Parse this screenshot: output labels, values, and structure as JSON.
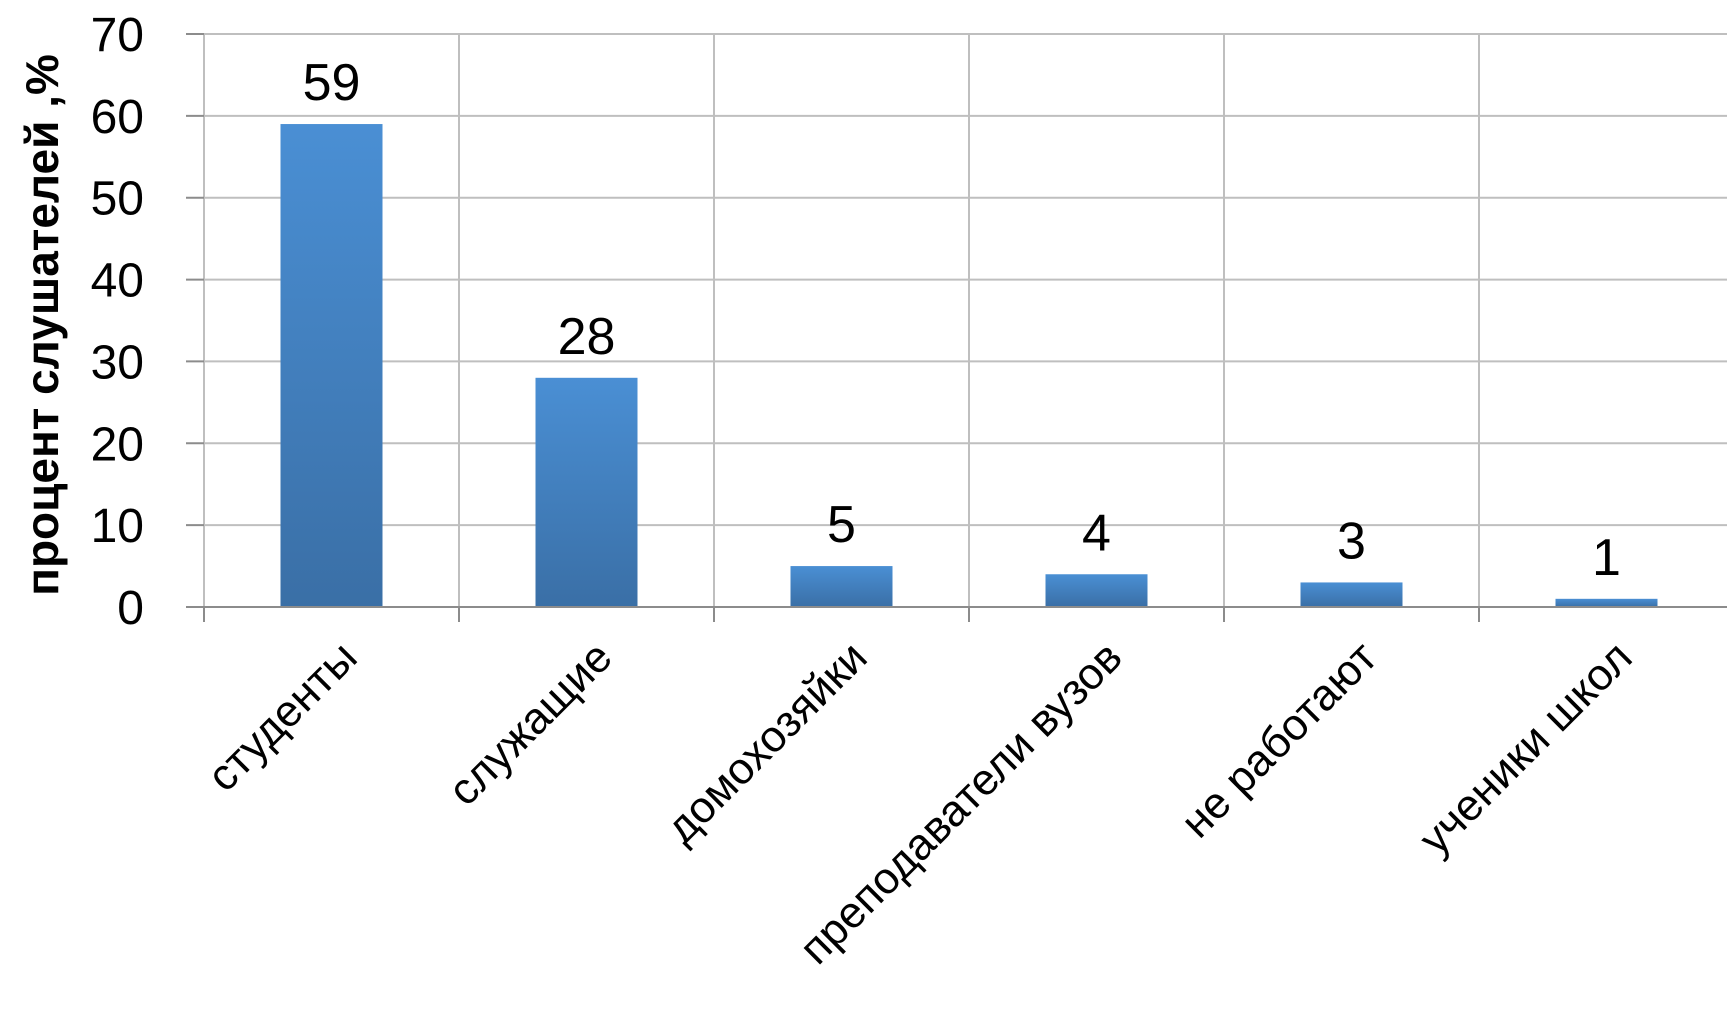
{
  "chart_data": {
    "type": "bar",
    "categories": [
      "студенты",
      "служащие",
      "домохозяйки",
      "преподаватели вузов",
      "не работают",
      "ученики школ"
    ],
    "values": [
      59,
      28,
      5,
      4,
      3,
      1
    ],
    "data_labels": [
      "59",
      "28",
      "5",
      "4",
      "3",
      "1"
    ],
    "ylabel": "процент слушателей ,%",
    "ylim": [
      0,
      70
    ],
    "yticks": [
      0,
      10,
      20,
      30,
      40,
      50,
      60,
      70
    ],
    "ytick_labels": [
      "0",
      "10",
      "20",
      "30",
      "40",
      "50",
      "60",
      "70"
    ],
    "grid": true,
    "legend": "none",
    "bar_color": "#4a8fd4",
    "bar_color_dark": "#3a6fa6"
  }
}
